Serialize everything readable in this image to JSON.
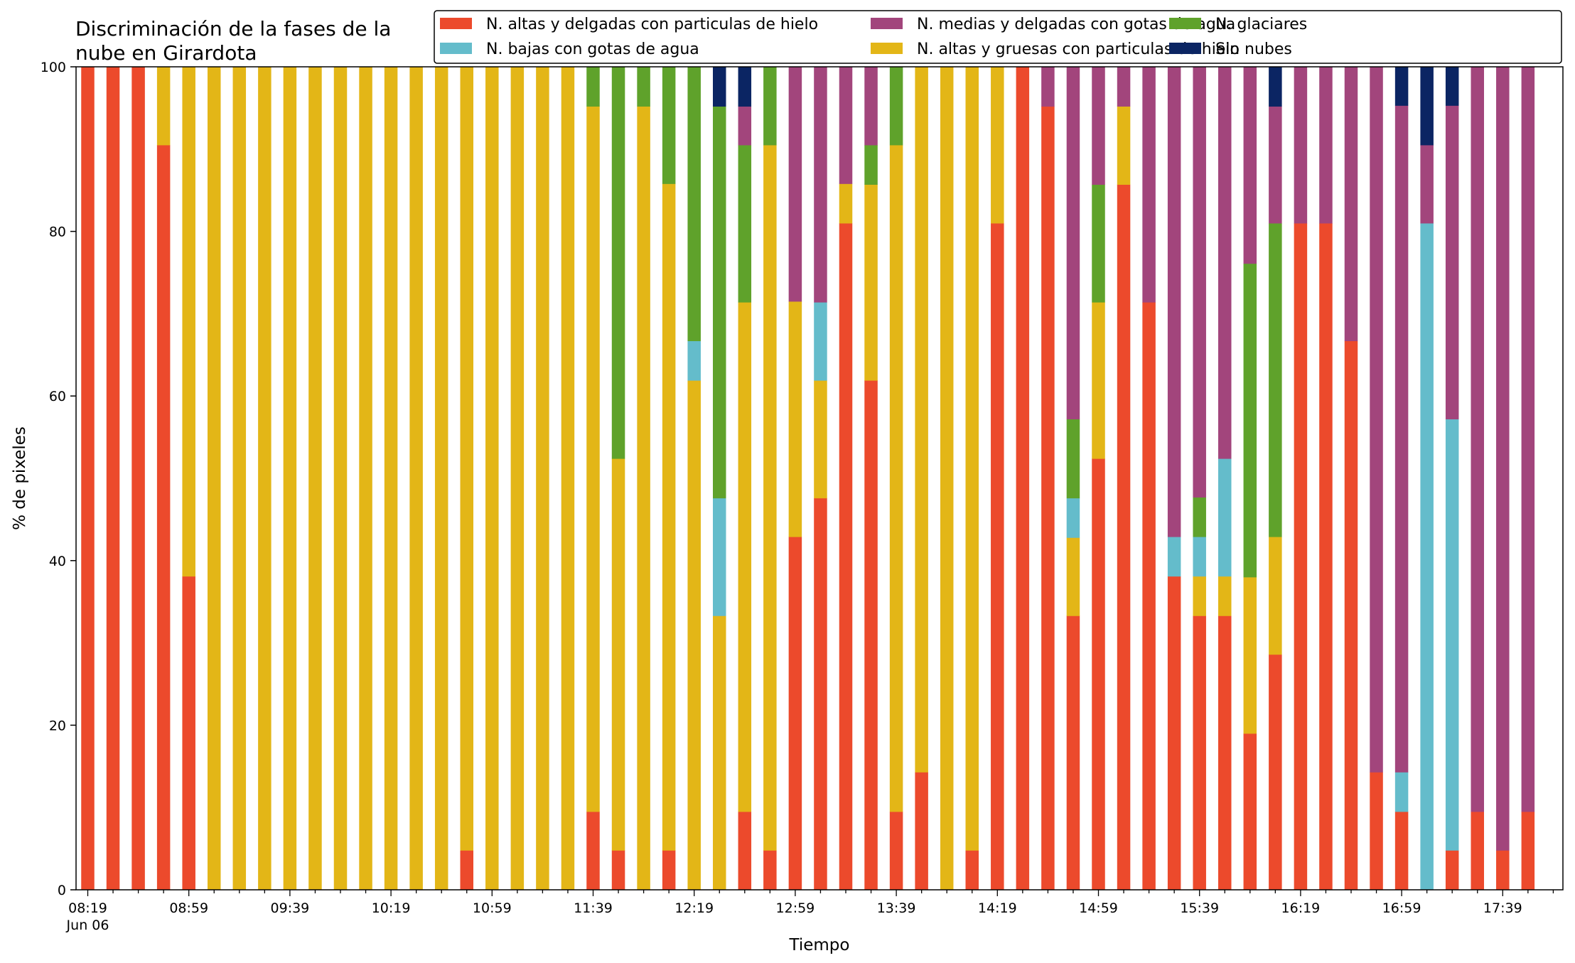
{
  "chart_data": {
    "type": "bar",
    "stacked": true,
    "title_lines": [
      "Discriminación de la fases de la",
      "nube en Girardota"
    ],
    "xlabel": "Tiempo",
    "ylabel": "% de pixeles",
    "ylim": [
      0,
      100
    ],
    "yticks": [
      0,
      20,
      40,
      60,
      80,
      100
    ],
    "grid": false,
    "legend_position": "top-right",
    "x_start": "08:19",
    "x_interval_minutes": 10,
    "x_count": 58,
    "x_tick_labels": [
      {
        "index": 0,
        "label": "08:19",
        "sublabel": "Jun 06"
      },
      {
        "index": 4,
        "label": "08:59"
      },
      {
        "index": 8,
        "label": "09:39"
      },
      {
        "index": 12,
        "label": "10:19"
      },
      {
        "index": 16,
        "label": "10:59"
      },
      {
        "index": 20,
        "label": "11:39"
      },
      {
        "index": 24,
        "label": "12:19"
      },
      {
        "index": 28,
        "label": "12:59"
      },
      {
        "index": 32,
        "label": "13:39"
      },
      {
        "index": 36,
        "label": "14:19"
      },
      {
        "index": 40,
        "label": "14:59"
      },
      {
        "index": 44,
        "label": "15:39"
      },
      {
        "index": 48,
        "label": "16:19"
      },
      {
        "index": 52,
        "label": "16:59"
      },
      {
        "index": 56,
        "label": "17:39"
      }
    ],
    "x_empty_indices": [
      1,
      2,
      3,
      5,
      6,
      7,
      9,
      10,
      11,
      13,
      14,
      15,
      17,
      18,
      19,
      21,
      22,
      23,
      25,
      26,
      27,
      29,
      30,
      31,
      33,
      34,
      35,
      37,
      38,
      39,
      41,
      42,
      43,
      45,
      46,
      47,
      49,
      50,
      51,
      53,
      54,
      55,
      57
    ],
    "bars": [
      {
        "index": 0,
        "values": [
          100,
          0,
          0,
          0,
          0,
          0
        ]
      },
      {
        "index": 1,
        "values": [
          100,
          0,
          0,
          0,
          0,
          0
        ]
      },
      {
        "index": 2,
        "values": [
          100,
          0,
          0,
          0,
          0,
          0
        ]
      },
      {
        "index": 3,
        "values": [
          90.5,
          9.5,
          0,
          0,
          0,
          0
        ]
      },
      {
        "index": 4,
        "values": [
          38.1,
          61.9,
          0,
          0,
          0,
          0
        ]
      },
      {
        "index": 5,
        "values": [
          0,
          100,
          0,
          0,
          0,
          0
        ]
      },
      {
        "index": 6,
        "values": [
          0,
          100,
          0,
          0,
          0,
          0
        ]
      },
      {
        "index": 7,
        "values": [
          0,
          100,
          0,
          0,
          0,
          0
        ]
      },
      {
        "index": 8,
        "values": [
          0,
          100,
          0,
          0,
          0,
          0
        ]
      },
      {
        "index": 9,
        "values": [
          0,
          100,
          0,
          0,
          0,
          0
        ]
      },
      {
        "index": 10,
        "values": [
          0,
          100,
          0,
          0,
          0,
          0
        ]
      },
      {
        "index": 11,
        "values": [
          0,
          100,
          0,
          0,
          0,
          0
        ]
      },
      {
        "index": 12,
        "values": [
          0,
          100,
          0,
          0,
          0,
          0
        ]
      },
      {
        "index": 13,
        "values": [
          0,
          100,
          0,
          0,
          0,
          0
        ]
      },
      {
        "index": 14,
        "values": [
          0,
          100,
          0,
          0,
          0,
          0
        ]
      },
      {
        "index": 15,
        "values": [
          4.8,
          95.2,
          0,
          0,
          0,
          0
        ]
      },
      {
        "index": 16,
        "values": [
          0,
          100,
          0,
          0,
          0,
          0
        ]
      },
      {
        "index": 17,
        "values": [
          0,
          100,
          0,
          0,
          0,
          0
        ]
      },
      {
        "index": 18,
        "values": [
          0,
          100,
          0,
          0,
          0,
          0
        ]
      },
      {
        "index": 19,
        "values": [
          0,
          100,
          0,
          0,
          0,
          0
        ]
      },
      {
        "index": 20,
        "values": [
          9.5,
          85.7,
          0,
          4.8,
          0,
          0
        ]
      },
      {
        "index": 21,
        "values": [
          4.8,
          47.6,
          0,
          47.6,
          0,
          0
        ]
      },
      {
        "index": 22,
        "values": [
          0,
          95.2,
          0,
          4.8,
          0,
          0
        ]
      },
      {
        "index": 23,
        "values": [
          4.8,
          81,
          0,
          14.2,
          0,
          0
        ]
      },
      {
        "index": 24,
        "values": [
          0,
          61.9,
          4.8,
          33.3,
          0,
          0
        ]
      },
      {
        "index": 25,
        "values": [
          0,
          33.3,
          14.3,
          47.6,
          0,
          4.8
        ]
      },
      {
        "index": 26,
        "values": [
          9.5,
          61.9,
          0,
          19.1,
          4.7,
          4.8
        ]
      },
      {
        "index": 27,
        "values": [
          4.8,
          85.7,
          0,
          9.5,
          0,
          0
        ]
      },
      {
        "index": 28,
        "values": [
          42.9,
          28.6,
          0,
          0,
          28.5,
          0
        ]
      },
      {
        "index": 29,
        "values": [
          47.6,
          14.3,
          9.5,
          0,
          28.6,
          0
        ]
      },
      {
        "index": 30,
        "values": [
          81,
          4.8,
          0,
          0,
          14.2,
          0
        ]
      },
      {
        "index": 31,
        "values": [
          61.9,
          23.8,
          0,
          4.8,
          9.5,
          0
        ]
      },
      {
        "index": 32,
        "values": [
          9.5,
          81,
          0,
          9.5,
          0,
          0
        ]
      },
      {
        "index": 33,
        "values": [
          14.3,
          85.7,
          0,
          0,
          0,
          0
        ]
      },
      {
        "index": 34,
        "values": [
          0,
          100,
          0,
          0,
          0,
          0
        ]
      },
      {
        "index": 35,
        "values": [
          4.8,
          95.2,
          0,
          0,
          0,
          0
        ]
      },
      {
        "index": 36,
        "values": [
          81,
          19,
          0,
          0,
          0,
          0
        ]
      },
      {
        "index": 37,
        "values": [
          100,
          0,
          0,
          0,
          0,
          0
        ]
      },
      {
        "index": 38,
        "values": [
          95.2,
          0,
          0,
          0,
          4.8,
          0
        ]
      },
      {
        "index": 39,
        "values": [
          33.3,
          9.5,
          4.8,
          9.6,
          42.8,
          0
        ]
      },
      {
        "index": 40,
        "values": [
          52.4,
          19,
          0,
          14.3,
          14.3,
          0
        ]
      },
      {
        "index": 41,
        "values": [
          85.7,
          9.5,
          0,
          0,
          4.8,
          0
        ]
      },
      {
        "index": 42,
        "values": [
          71.4,
          0,
          0,
          0,
          28.6,
          0
        ]
      },
      {
        "index": 43,
        "values": [
          38.1,
          0,
          4.8,
          0,
          57.1,
          0
        ]
      },
      {
        "index": 44,
        "values": [
          33.3,
          4.8,
          4.8,
          4.8,
          52.3,
          0
        ]
      },
      {
        "index": 45,
        "values": [
          33.3,
          4.8,
          14.3,
          0,
          47.6,
          0
        ]
      },
      {
        "index": 46,
        "values": [
          19,
          19,
          0,
          38.1,
          23.9,
          0
        ]
      },
      {
        "index": 47,
        "values": [
          28.6,
          14.3,
          0,
          38.1,
          14.2,
          4.8
        ]
      },
      {
        "index": 48,
        "values": [
          81,
          0,
          0,
          0,
          19,
          0
        ]
      },
      {
        "index": 49,
        "values": [
          81,
          0,
          0,
          0,
          19,
          0
        ]
      },
      {
        "index": 50,
        "values": [
          66.7,
          0,
          0,
          0,
          33.3,
          0
        ]
      },
      {
        "index": 51,
        "values": [
          14.3,
          0,
          0,
          0,
          85.7,
          0
        ]
      },
      {
        "index": 52,
        "values": [
          9.5,
          0,
          4.8,
          0,
          81,
          4.7
        ]
      },
      {
        "index": 53,
        "values": [
          0,
          0,
          81,
          0,
          9.5,
          9.5
        ]
      },
      {
        "index": 54,
        "values": [
          4.8,
          0,
          52.4,
          0,
          38.1,
          4.7
        ]
      },
      {
        "index": 55,
        "values": [
          9.5,
          0,
          0,
          0,
          90.5,
          0
        ]
      },
      {
        "index": 56,
        "values": [
          4.8,
          0,
          0,
          0,
          95.2,
          0
        ]
      },
      {
        "index": 57,
        "values": [
          9.5,
          0,
          0,
          0,
          90.5,
          0
        ]
      }
    ],
    "series": [
      {
        "name": "N. altas y delgadas con particulas de hielo",
        "color": "#ec4a2c"
      },
      {
        "name": "N. altas y gruesas con particulas de hielo",
        "color": "#e3b617"
      },
      {
        "name": "N. bajas con gotas de agua",
        "color": "#64bccb"
      },
      {
        "name": "N. glaciares",
        "color": "#5fa22b"
      },
      {
        "name": "N. medias y delgadas con gotas de agua",
        "color": "#a2457c"
      },
      {
        "name": "Sin nubes",
        "color": "#0b2563"
      }
    ],
    "legend_order": [
      0,
      2,
      4,
      1,
      3,
      5
    ]
  }
}
